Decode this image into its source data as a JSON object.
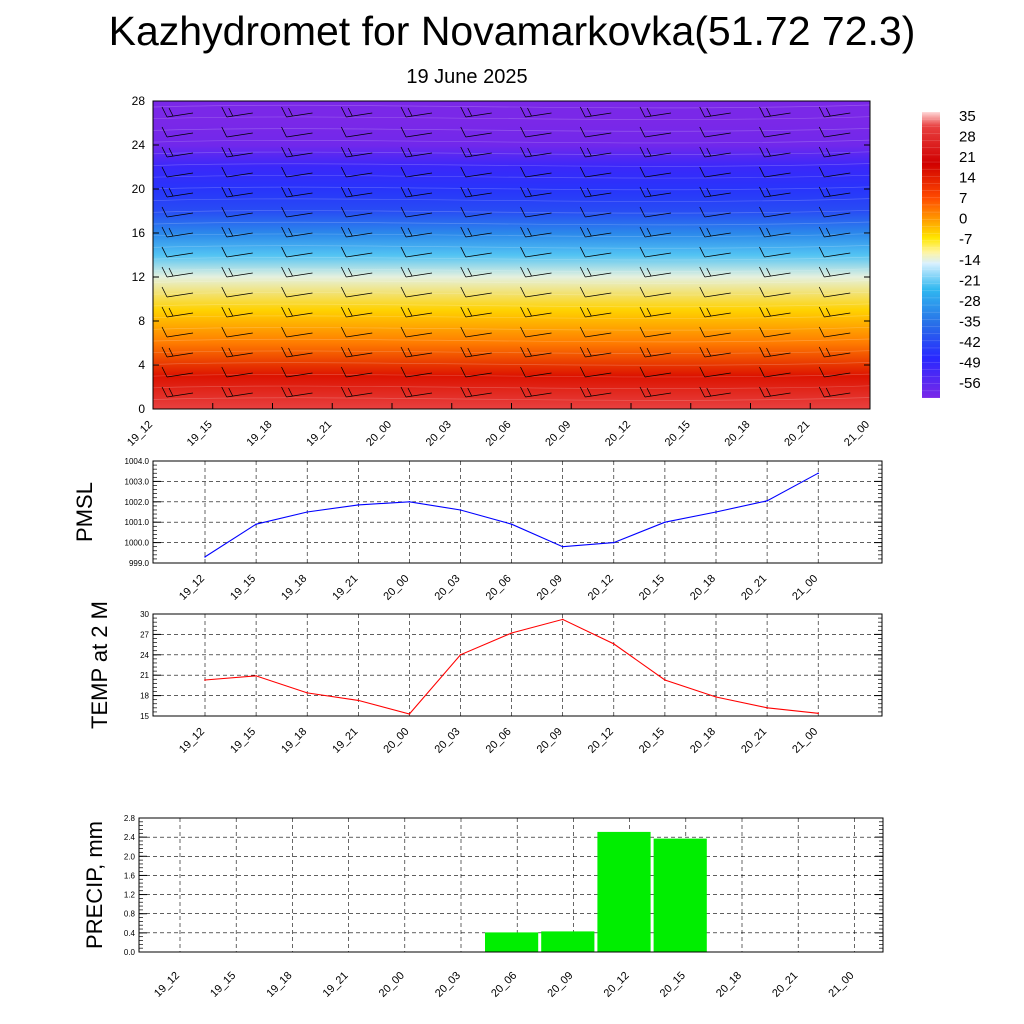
{
  "header": {
    "title": "Kazhydromet for Novamarkovka(51.72 72.3)",
    "subtitle": "19 June 2025"
  },
  "chart_data": [
    {
      "type": "heatmap",
      "title": "",
      "xlabel": "",
      "ylabel": "",
      "x": [
        "19_12",
        "19_15",
        "19_18",
        "19_21",
        "20_00",
        "20_03",
        "20_06",
        "20_09",
        "20_12",
        "20_15",
        "20_18",
        "20_21",
        "21_00"
      ],
      "y_ticks": [
        0,
        4,
        8,
        12,
        16,
        20,
        24,
        28
      ],
      "ylim": [
        0,
        28
      ],
      "levels": [
        {
          "y": 0,
          "value": 30
        },
        {
          "y": 3,
          "value": 20
        },
        {
          "y": 6,
          "value": 10
        },
        {
          "y": 9,
          "value": 2
        },
        {
          "y": 12,
          "value": -12
        },
        {
          "y": 14,
          "value": -22
        },
        {
          "y": 16,
          "value": -32
        },
        {
          "y": 18,
          "value": -42
        },
        {
          "y": 20,
          "value": -46
        },
        {
          "y": 22,
          "value": -50
        },
        {
          "y": 24,
          "value": -56
        },
        {
          "y": 26,
          "value": -57
        },
        {
          "y": 28,
          "value": -57
        }
      ],
      "colorbar_labels": [
        "35",
        "28",
        "21",
        "14",
        "7",
        "0",
        "-7",
        "-14",
        "-21",
        "-28",
        "-35",
        "-42",
        "-49",
        "-56"
      ],
      "wind_barbs": true
    },
    {
      "type": "line",
      "ylabel": "PMSL",
      "x": [
        "19_12",
        "19_15",
        "19_18",
        "19_21",
        "20_00",
        "20_03",
        "20_06",
        "20_09",
        "20_12",
        "20_15",
        "20_18",
        "20_21",
        "21_00"
      ],
      "y_ticks": [
        "999.0",
        "1000.0",
        "1001.0",
        "1002.0",
        "1003.0",
        "1004.0"
      ],
      "ylim": [
        999,
        1004
      ],
      "series": [
        {
          "values": [
            999.3,
            1000.9,
            1001.5,
            1001.85,
            1002.0,
            1001.6,
            1000.9,
            999.8,
            1000.0,
            1001.0,
            1001.5,
            1002.05,
            1003.4
          ],
          "color": "#0000ff"
        }
      ],
      "grid": true
    },
    {
      "type": "line",
      "ylabel": "TEMP at 2 M",
      "x": [
        "19_12",
        "19_15",
        "19_18",
        "19_21",
        "20_00",
        "20_03",
        "20_06",
        "20_09",
        "20_12",
        "20_15",
        "20_18",
        "20_21",
        "21_00"
      ],
      "y_ticks": [
        "15",
        "18",
        "21",
        "24",
        "27",
        "30"
      ],
      "ylim": [
        15,
        30
      ],
      "series": [
        {
          "values": [
            20.3,
            20.9,
            18.4,
            17.3,
            15.3,
            24.0,
            27.2,
            29.2,
            25.6,
            20.3,
            17.8,
            16.2,
            15.4
          ],
          "color": "#ff0000"
        }
      ],
      "grid": true
    },
    {
      "type": "bar",
      "ylabel": "PRECIP, mm",
      "categories": [
        "19_12",
        "19_15",
        "19_18",
        "19_21",
        "20_00",
        "20_03",
        "20_06",
        "20_09",
        "20_12",
        "20_15",
        "20_18",
        "20_21",
        "21_00"
      ],
      "y_ticks": [
        "0.0",
        "0.4",
        "0.8",
        "1.2",
        "1.6",
        "2.0",
        "2.4",
        "2.8"
      ],
      "ylim": [
        0,
        2.8
      ],
      "values": [
        0,
        0,
        0,
        0,
        0,
        0,
        0.41,
        0.43,
        2.51,
        2.37,
        0,
        0,
        0
      ],
      "color": "#00ee00",
      "grid": true
    }
  ]
}
